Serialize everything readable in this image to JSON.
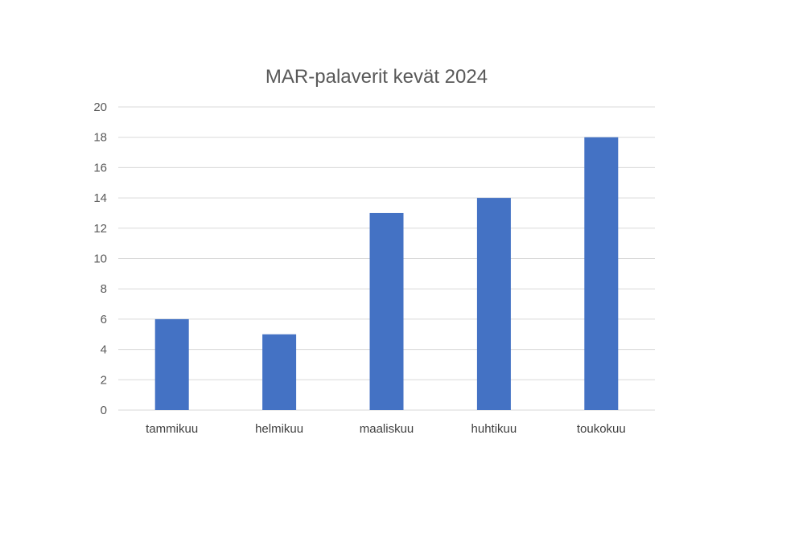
{
  "chart_data": {
    "type": "bar",
    "title": "MAR-palaverit kevät 2024",
    "categories": [
      "tammikuu",
      "helmikuu",
      "maaliskuu",
      "huhtikuu",
      "toukokuu"
    ],
    "values": [
      6,
      5,
      13,
      14,
      18
    ],
    "ylim": [
      0,
      20
    ],
    "yticks": [
      0,
      2,
      4,
      6,
      8,
      10,
      12,
      14,
      16,
      18,
      20
    ],
    "xlabel": "",
    "ylabel": "",
    "grid": true,
    "legend": "none",
    "bar_color": "#4472C4",
    "grid_color": "#D9D9D9"
  }
}
